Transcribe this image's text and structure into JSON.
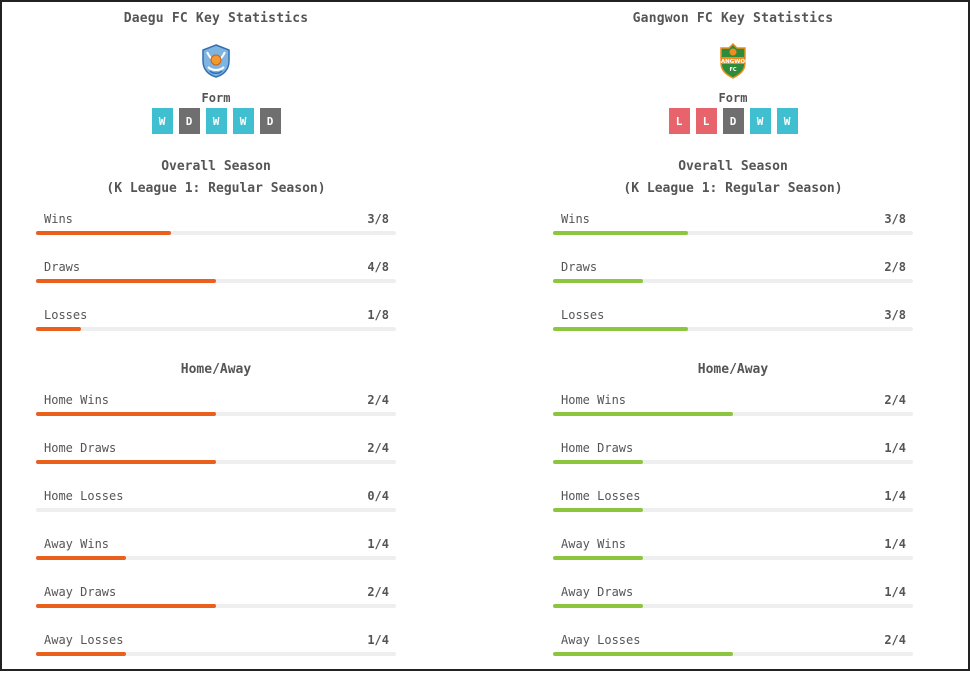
{
  "colors": {
    "win": "#3fbfcf",
    "draw": "#6f6f6f",
    "loss": "#e8646c",
    "daegu_bar": "#e8601c",
    "gangwon_bar": "#8cc63f"
  },
  "teams": [
    {
      "title": "Daegu FC Key Statistics",
      "logo_icon": "daegu-fc-crest-icon",
      "form_label": "Form",
      "form": [
        "W",
        "D",
        "W",
        "W",
        "D"
      ],
      "overall_title": "Overall Season",
      "overall_subtitle": "(K League 1: Regular Season)",
      "overall": [
        {
          "label": "Wins",
          "value": "3/8",
          "ratio": 0.375
        },
        {
          "label": "Draws",
          "value": "4/8",
          "ratio": 0.5
        },
        {
          "label": "Losses",
          "value": "1/8",
          "ratio": 0.125
        }
      ],
      "homeaway_title": "Home/Away",
      "homeaway": [
        {
          "label": "Home Wins",
          "value": "2/4",
          "ratio": 0.5
        },
        {
          "label": "Home Draws",
          "value": "2/4",
          "ratio": 0.5
        },
        {
          "label": "Home Losses",
          "value": "0/4",
          "ratio": 0
        },
        {
          "label": "Away Wins",
          "value": "1/4",
          "ratio": 0.25
        },
        {
          "label": "Away Draws",
          "value": "2/4",
          "ratio": 0.5
        },
        {
          "label": "Away Losses",
          "value": "1/4",
          "ratio": 0.25
        }
      ]
    },
    {
      "title": "Gangwon FC Key Statistics",
      "logo_icon": "gangwon-fc-crest-icon",
      "logo_text": "GANGWON",
      "form_label": "Form",
      "form": [
        "L",
        "L",
        "D",
        "W",
        "W"
      ],
      "overall_title": "Overall Season",
      "overall_subtitle": "(K League 1: Regular Season)",
      "overall": [
        {
          "label": "Wins",
          "value": "3/8",
          "ratio": 0.375
        },
        {
          "label": "Draws",
          "value": "2/8",
          "ratio": 0.25
        },
        {
          "label": "Losses",
          "value": "3/8",
          "ratio": 0.375
        }
      ],
      "homeaway_title": "Home/Away",
      "homeaway": [
        {
          "label": "Home Wins",
          "value": "2/4",
          "ratio": 0.5
        },
        {
          "label": "Home Draws",
          "value": "1/4",
          "ratio": 0.25
        },
        {
          "label": "Home Losses",
          "value": "1/4",
          "ratio": 0.25
        },
        {
          "label": "Away Wins",
          "value": "1/4",
          "ratio": 0.25
        },
        {
          "label": "Away Draws",
          "value": "1/4",
          "ratio": 0.25
        },
        {
          "label": "Away Losses",
          "value": "2/4",
          "ratio": 0.5
        }
      ]
    }
  ]
}
